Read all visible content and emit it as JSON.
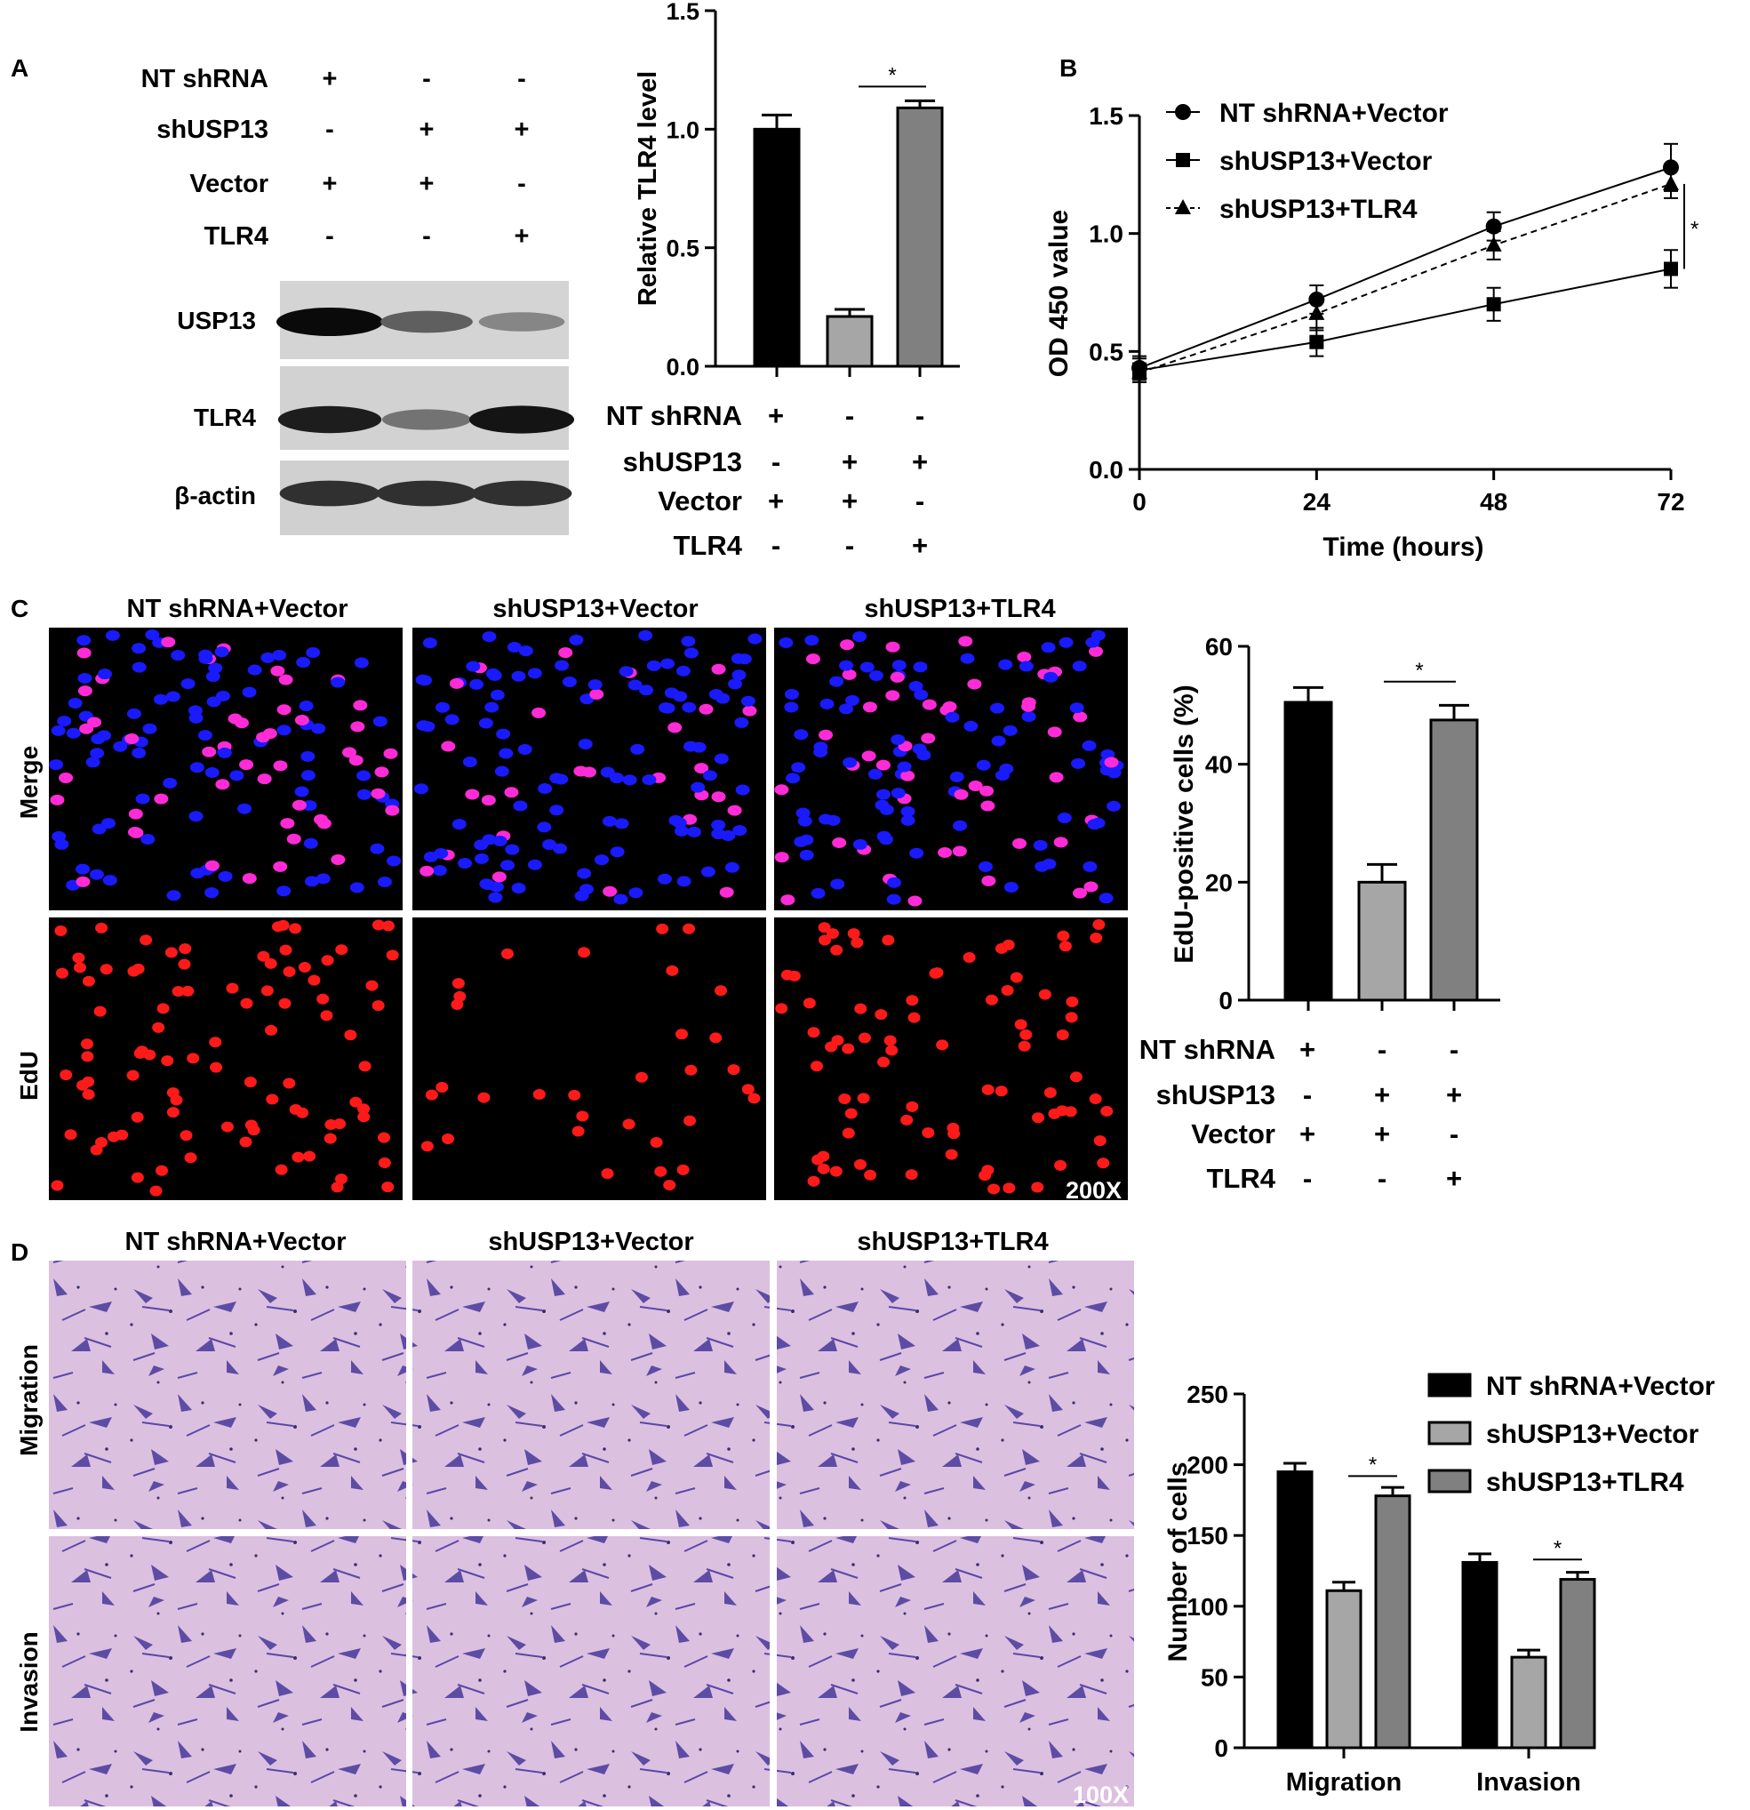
{
  "panel_letters": [
    "A",
    "B",
    "C",
    "D"
  ],
  "conditions": {
    "row_labels": [
      "NT shRNA",
      "shUSP13",
      "Vector",
      "TLR4"
    ],
    "signs": [
      [
        "+",
        "-",
        "-"
      ],
      [
        "-",
        "+",
        "+"
      ],
      [
        "+",
        "+",
        "-"
      ],
      [
        "-",
        "-",
        "+"
      ]
    ]
  },
  "western_blot": {
    "bands": [
      {
        "label": "USP13",
        "intensities": [
          1.0,
          0.55,
          0.35
        ]
      },
      {
        "label": "TLR4",
        "intensities": [
          0.9,
          0.45,
          0.95
        ]
      },
      {
        "label": "β-actin",
        "intensities": [
          0.8,
          0.8,
          0.8
        ]
      }
    ]
  },
  "group_names": [
    "NT shRNA+Vector",
    "shUSP13+Vector",
    "shUSP13+TLR4"
  ],
  "panel_c": {
    "row_labels": [
      "Merge",
      "EdU"
    ],
    "magnification": "200X"
  },
  "panel_d": {
    "row_labels": [
      "Migration",
      "Invasion"
    ],
    "magnification": "100X"
  },
  "significance_mark": "*",
  "colors": {
    "black_bar": "#000000",
    "light_bar": "#a6a6a6",
    "dark_bar": "#808080"
  },
  "chart_data": [
    {
      "id": "tlr4",
      "type": "bar",
      "categories": [
        "NT shRNA+Vector",
        "shUSP13+Vector",
        "shUSP13+TLR4"
      ],
      "values": [
        1.0,
        0.21,
        1.09
      ],
      "errors": [
        0.06,
        0.03,
        0.03
      ],
      "ylabel": "Relative TLR4 level",
      "ylim": [
        0,
        1.5
      ],
      "yticks": [
        "0.0",
        "0.5",
        "1.0",
        "1.5"
      ]
    },
    {
      "id": "od450",
      "type": "line",
      "x": [
        0,
        24,
        48,
        72
      ],
      "xticks": [
        "0",
        "24",
        "48",
        "72"
      ],
      "xlabel": "Time (hours)",
      "ylabel": "OD 450 value",
      "ylim": [
        0,
        1.5
      ],
      "yticks": [
        "0.0",
        "0.5",
        "1.0",
        "1.5"
      ],
      "legend_position": "top-left",
      "series": [
        {
          "name": "NT shRNA+Vector",
          "marker": "circle",
          "dashed": false,
          "values": [
            0.43,
            0.72,
            1.03,
            1.28
          ],
          "errors": [
            0.05,
            0.06,
            0.06,
            0.1
          ]
        },
        {
          "name": "shUSP13+Vector",
          "marker": "square",
          "dashed": false,
          "values": [
            0.42,
            0.54,
            0.7,
            0.85
          ],
          "errors": [
            0.05,
            0.06,
            0.07,
            0.08
          ]
        },
        {
          "name": "shUSP13+TLR4",
          "marker": "triangle",
          "dashed": true,
          "values": [
            0.41,
            0.66,
            0.95,
            1.21
          ],
          "errors": [
            0.04,
            0.07,
            0.06,
            0.06
          ]
        }
      ]
    },
    {
      "id": "edu",
      "type": "bar",
      "categories": [
        "NT shRNA+Vector",
        "shUSP13+Vector",
        "shUSP13+TLR4"
      ],
      "values": [
        50.5,
        20,
        47.5
      ],
      "errors": [
        2.5,
        3.0,
        2.5
      ],
      "ylabel": "EdU-positive cells (%)",
      "ylim": [
        0,
        60
      ],
      "yticks": [
        "0",
        "20",
        "40",
        "60"
      ]
    },
    {
      "id": "cells",
      "type": "bar",
      "categories": [
        "Migration",
        "Invasion"
      ],
      "ylabel": "Number of cells",
      "ylim": [
        0,
        250
      ],
      "yticks": [
        "0",
        "50",
        "100",
        "150",
        "200",
        "250"
      ],
      "legend_position": "top-right",
      "series": [
        {
          "name": "NT shRNA+Vector",
          "values": [
            195,
            131
          ],
          "errors": [
            6,
            6
          ]
        },
        {
          "name": "shUSP13+Vector",
          "values": [
            111,
            64
          ],
          "errors": [
            6,
            5
          ]
        },
        {
          "name": "shUSP13+TLR4",
          "values": [
            178,
            119
          ],
          "errors": [
            6,
            5
          ]
        }
      ]
    }
  ]
}
